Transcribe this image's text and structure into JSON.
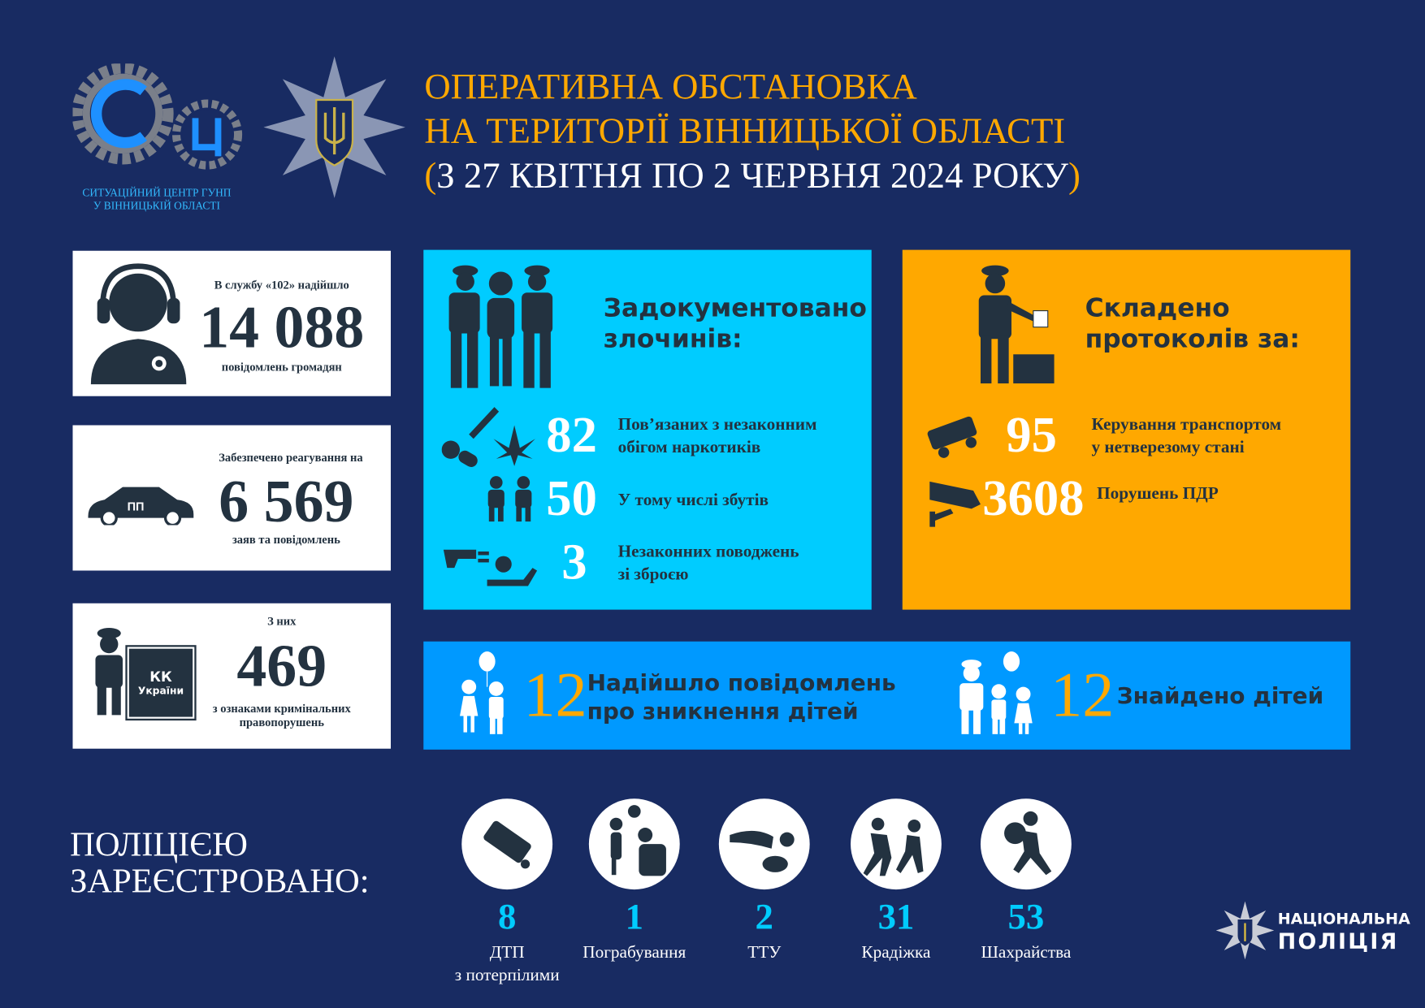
{
  "header": {
    "logo_caption_line1": "СИТУАЦІЙНИЙ ЦЕНТР ГУНП",
    "logo_caption_line2": "У ВІННИЦЬКІЙ ОБЛАСТІ",
    "logo_letters": "СЦ",
    "title_line1": "ОПЕРАТИВНА ОБСТАНОВКА",
    "title_line2": "НА ТЕРИТОРІЇ ВІННИЦЬКОЇ ОБЛАСТІ",
    "title_line3_open": "(",
    "title_line3": "З 27 КВІТНЯ  ПО 2 ЧЕРВНЯ 2024 РОКУ",
    "title_line3_close": ")"
  },
  "left_cards": [
    {
      "top": "В службу «102» надійшло",
      "value": "14 088",
      "bottom": "повідомлень громадян",
      "icon": "operator-headset-icon"
    },
    {
      "top": "Забезпечено реагування на",
      "value": "6 569",
      "bottom": "заяв та повідомлень",
      "icon": "police-car-icon",
      "car_label": "ПП"
    },
    {
      "top": "З них",
      "value": "469",
      "bottom": "з ознаками кримінальних правопорушень",
      "icon": "police-book-icon",
      "book_line1": "КК",
      "book_line2": "України"
    }
  ],
  "crimes": {
    "heading_line1": "Задокументовано",
    "heading_line2": "злочинів:",
    "items": [
      {
        "value": "82",
        "label_line1": "Пов’язаних з незаконним",
        "label_line2": "обігом наркотиків",
        "icon": "drugs-icon"
      },
      {
        "value": "50",
        "label_line1": "У тому числі збутів",
        "label_line2": "",
        "icon": "drug-dealing-icon"
      },
      {
        "value": "3",
        "label_line1": "Незаконних поводжень",
        "label_line2": "зі зброєю",
        "icon": "weapons-icon"
      }
    ]
  },
  "protocols": {
    "heading_line1": "Складено",
    "heading_line2": "протоколів за:",
    "items": [
      {
        "value": "95",
        "label_line1": "Керування транспортом",
        "label_line2": "у нетверезому стані",
        "icon": "crashed-car-icon"
      },
      {
        "value": "3608",
        "label_line1": "Порушень ПДР",
        "label_line2": "",
        "icon": "traffic-camera-icon"
      }
    ]
  },
  "children": {
    "missing_value": "12",
    "missing_line1": "Надійшло повідомлень",
    "missing_line2": "про зникнення дітей",
    "found_value": "12",
    "found_label": "Знайдено дітей"
  },
  "registered": {
    "heading_line1": "ПОЛІЦІЄЮ",
    "heading_line2": "ЗАРЕЄСТРОВАНО:",
    "items": [
      {
        "value": "8",
        "label_line1": "ДТП",
        "label_line2": "з потерпілими",
        "icon": "car-accident-icon"
      },
      {
        "value": "1",
        "label_line1": "Пограбування",
        "label_line2": "",
        "icon": "robbery-icon"
      },
      {
        "value": "2",
        "label_line1": "ТТУ",
        "label_line2": "",
        "icon": "injured-person-icon"
      },
      {
        "value": "31",
        "label_line1": "Крадіжка",
        "label_line2": "",
        "icon": "theft-icon"
      },
      {
        "value": "53",
        "label_line1": "Шахрайства",
        "label_line2": "",
        "icon": "fraud-icon"
      }
    ]
  },
  "footer_logo": {
    "line1": "НАЦІОНАЛЬНА",
    "line2": "ПОЛІЦІЯ"
  },
  "colors": {
    "background": "#182b62",
    "title": "#ffa800",
    "cyan_panel": "#00ccff",
    "orange_panel": "#ffa800",
    "blue_bar": "#0099ff",
    "dark": "#233240"
  }
}
